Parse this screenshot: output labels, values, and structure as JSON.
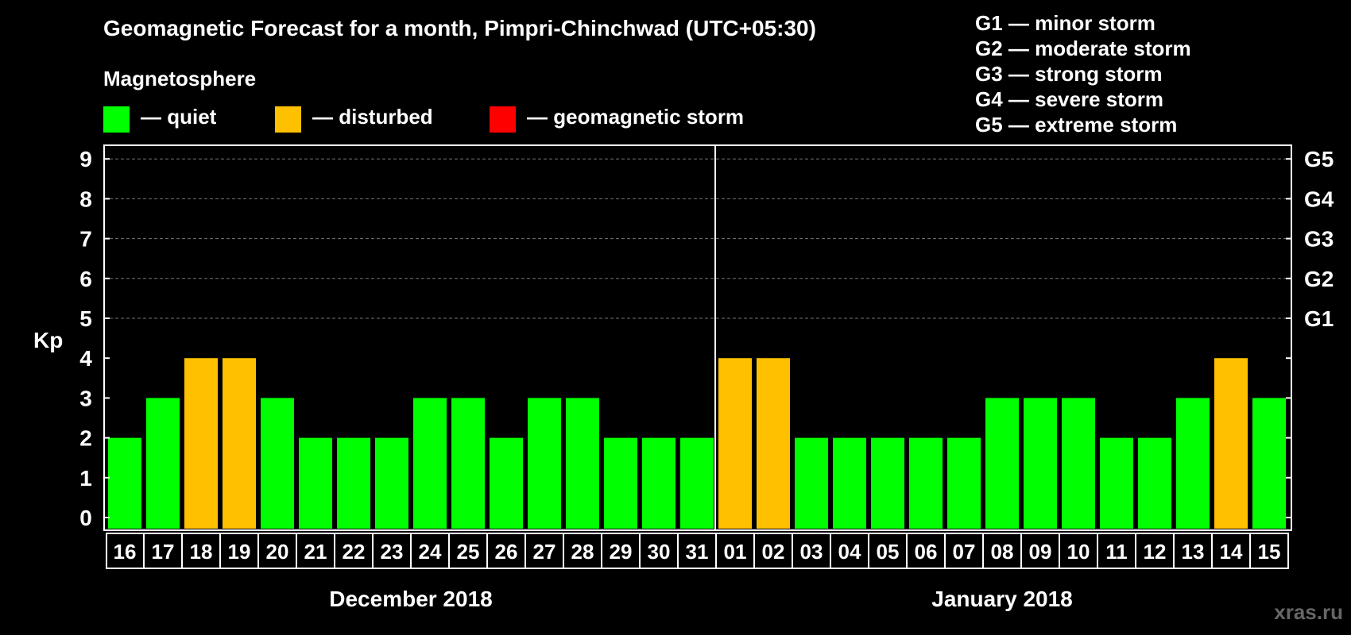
{
  "title": "Geomagnetic Forecast for a month, Pimpri-Chinchwad (UTC+05:30)",
  "legend": {
    "heading": "Magnetosphere",
    "items": [
      {
        "label": "— quiet",
        "color": "#00ff00"
      },
      {
        "label": "— disturbed",
        "color": "#ffc000"
      },
      {
        "label": "— geomagnetic storm",
        "color": "#ff0000"
      }
    ]
  },
  "storm_levels": [
    "G1 — minor storm",
    "G2 — moderate storm",
    "G3 — strong storm",
    "G4 — severe storm",
    "G5 — extreme storm"
  ],
  "watermark": "xras.ru",
  "chart_data": {
    "type": "bar",
    "ylabel": "Kp",
    "ylim": [
      0,
      9
    ],
    "yticks": [
      0,
      1,
      2,
      3,
      4,
      5,
      6,
      7,
      8,
      9
    ],
    "right_ticks": [
      {
        "value": 5,
        "label": "G1"
      },
      {
        "value": 6,
        "label": "G2"
      },
      {
        "value": 7,
        "label": "G3"
      },
      {
        "value": 8,
        "label": "G4"
      },
      {
        "value": 9,
        "label": "G5"
      }
    ],
    "grid": "dashed lines at Kp 5-9",
    "categories": [
      "16",
      "17",
      "18",
      "19",
      "20",
      "21",
      "22",
      "23",
      "24",
      "25",
      "26",
      "27",
      "28",
      "29",
      "30",
      "31",
      "01",
      "02",
      "03",
      "04",
      "05",
      "06",
      "07",
      "08",
      "09",
      "10",
      "11",
      "12",
      "13",
      "14",
      "15"
    ],
    "values": [
      2,
      3,
      4,
      4,
      3,
      2,
      2,
      2,
      3,
      3,
      2,
      3,
      3,
      2,
      2,
      2,
      4,
      4,
      2,
      2,
      2,
      2,
      2,
      3,
      3,
      3,
      2,
      2,
      3,
      4,
      3
    ],
    "status": [
      "quiet",
      "quiet",
      "disturbed",
      "disturbed",
      "quiet",
      "quiet",
      "quiet",
      "quiet",
      "quiet",
      "quiet",
      "quiet",
      "quiet",
      "quiet",
      "quiet",
      "quiet",
      "quiet",
      "disturbed",
      "disturbed",
      "quiet",
      "quiet",
      "quiet",
      "quiet",
      "quiet",
      "quiet",
      "quiet",
      "quiet",
      "quiet",
      "quiet",
      "quiet",
      "disturbed",
      "quiet"
    ],
    "colors": {
      "quiet": "#00ff00",
      "disturbed": "#ffc000",
      "storm": "#ff0000"
    },
    "month_groups": [
      {
        "label": "December 2018",
        "count": 16
      },
      {
        "label": "January 2018",
        "count": 15
      }
    ]
  }
}
